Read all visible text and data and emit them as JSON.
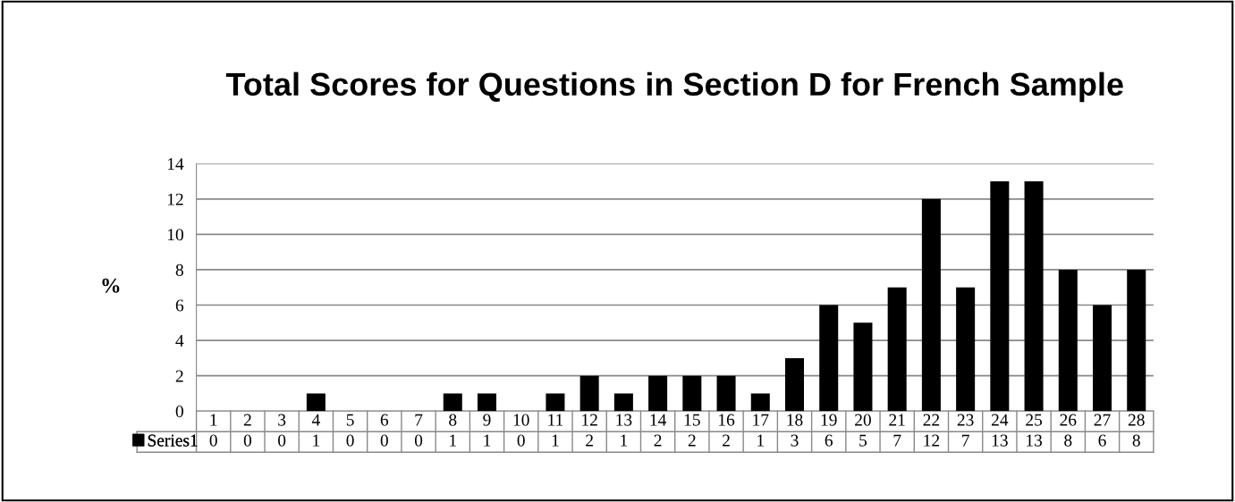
{
  "chart_data": {
    "type": "bar",
    "title": "Total Scores for Questions in Section D for French Sample",
    "ylabel": "%",
    "categories": [
      "1",
      "2",
      "3",
      "4",
      "5",
      "6",
      "7",
      "8",
      "9",
      "10",
      "11",
      "12",
      "13",
      "14",
      "15",
      "16",
      "17",
      "18",
      "19",
      "20",
      "21",
      "22",
      "23",
      "24",
      "25",
      "26",
      "27",
      "28"
    ],
    "series": [
      {
        "name": "Series1",
        "color": "#000000",
        "values": [
          0,
          0,
          0,
          1,
          0,
          0,
          0,
          1,
          1,
          0,
          1,
          2,
          1,
          2,
          2,
          2,
          1,
          3,
          6,
          5,
          7,
          12,
          7,
          13,
          13,
          8,
          6,
          8
        ]
      }
    ],
    "ylim": [
      0,
      14
    ],
    "yticks": [
      0,
      2,
      4,
      6,
      8,
      10,
      12,
      14
    ],
    "grid": "y",
    "legend": "bottom",
    "data_labels": true
  }
}
